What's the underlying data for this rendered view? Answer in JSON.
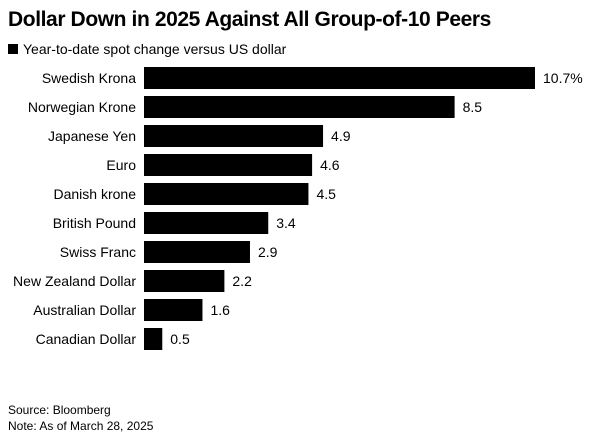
{
  "chart_data": {
    "type": "bar",
    "orientation": "horizontal",
    "title": "Dollar Down in 2025 Against All Group-of-10 Peers",
    "legend": "Year-to-date spot change versus US dollar",
    "categories": [
      "Swedish Krona",
      "Norwegian Krone",
      "Japanese Yen",
      "Euro",
      "Danish krone",
      "British Pound",
      "Swiss Franc",
      "New Zealand Dollar",
      "Australian Dollar",
      "Canadian Dollar"
    ],
    "values": [
      10.7,
      8.5,
      4.9,
      4.6,
      4.5,
      3.4,
      2.9,
      2.2,
      1.6,
      0.5
    ],
    "value_labels": [
      "10.7%",
      "8.5",
      "4.9",
      "4.6",
      "4.5",
      "3.4",
      "2.9",
      "2.2",
      "1.6",
      "0.5"
    ],
    "unit": "%",
    "bar_color": "#000000",
    "xlim": [
      0,
      10.7
    ],
    "grid": false
  },
  "footer": {
    "source": "Source: Bloomberg",
    "note": "Note: As of March 28, 2025"
  }
}
